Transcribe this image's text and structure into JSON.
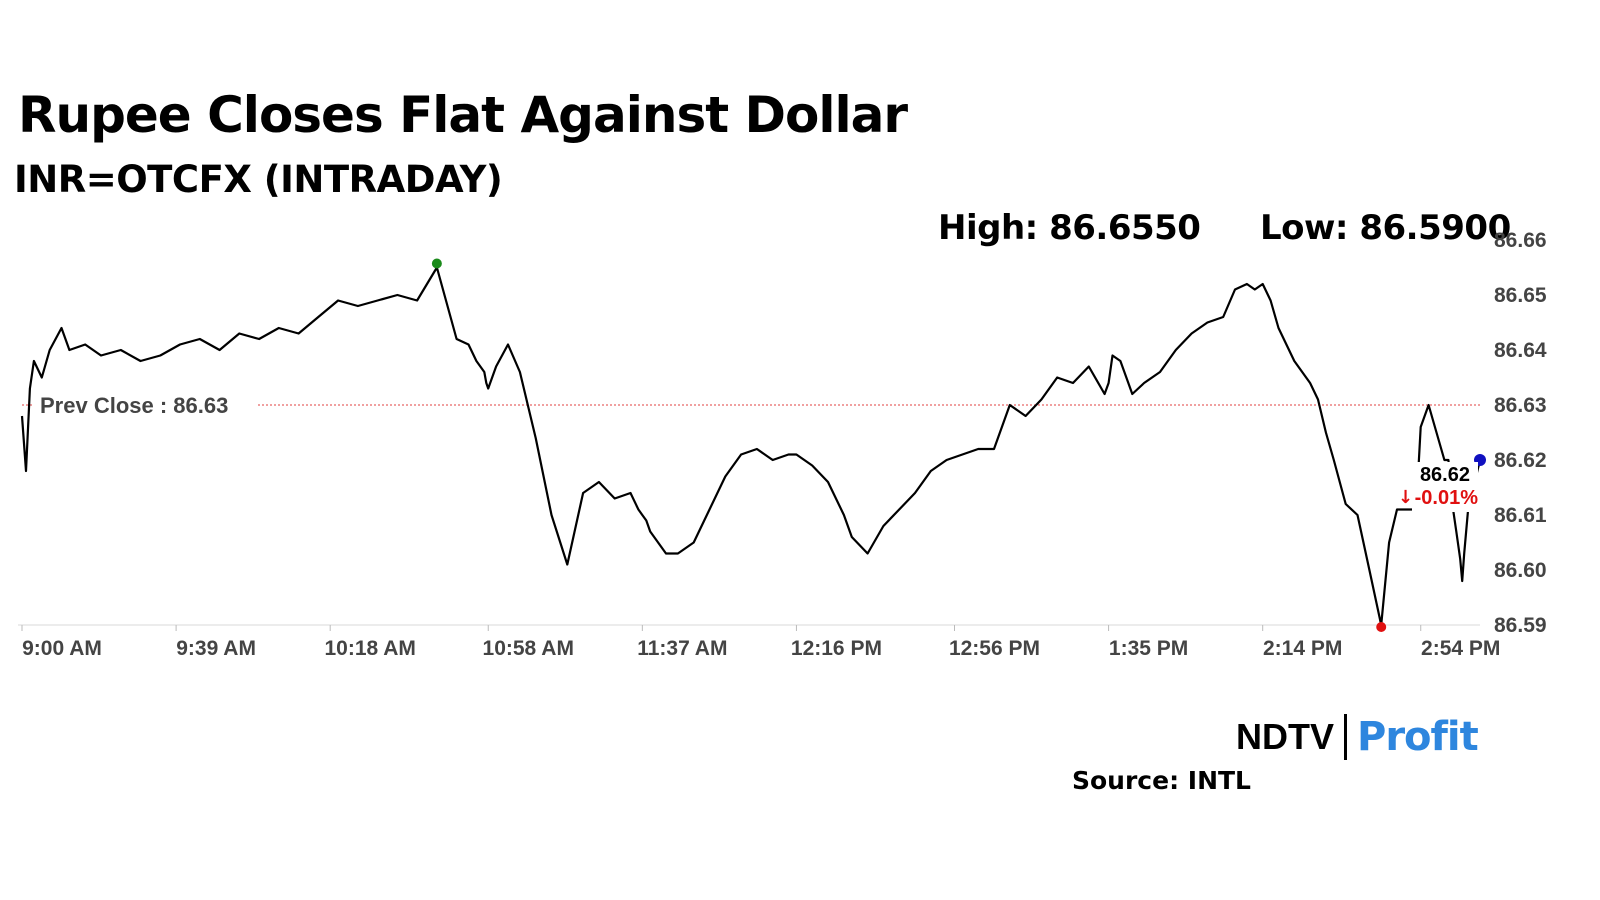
{
  "title": "Rupee Closes Flat Against Dollar",
  "subtitle": "INR=OTCFX (INTRADAY)",
  "stats": {
    "high": "High: 86.6550",
    "low": "Low: 86.5900"
  },
  "source": "Source: INTL",
  "logo": {
    "part1": "NDTV",
    "part2": "Profit"
  },
  "colors": {
    "line": "#000000",
    "prev_close": "#e04040",
    "high_dot": "#1a8a1a",
    "low_dot": "#e01010",
    "last_dot": "#1010c0",
    "change_negative": "#e01010",
    "grid": "#d9d9d9",
    "axis_text": "#444444"
  },
  "chart_data": {
    "type": "line",
    "title": "Rupee Closes Flat Against Dollar",
    "subtitle": "INR=OTCFX (INTRADAY)",
    "xlabel": "",
    "ylabel": "",
    "ylim": [
      86.59,
      86.66
    ],
    "y_ticks": [
      "86.66",
      "86.65",
      "86.64",
      "86.63",
      "86.62",
      "86.61",
      "86.60",
      "86.59"
    ],
    "x_ticks": [
      "9:00 AM",
      "9:39 AM",
      "10:18 AM",
      "10:58 AM",
      "11:37 AM",
      "12:16 PM",
      "12:56 PM",
      "1:35 PM",
      "2:14 PM",
      "2:54 PM"
    ],
    "x_tick_minutes": [
      540,
      579,
      618,
      658,
      697,
      736,
      776,
      815,
      854,
      894
    ],
    "prev_close": {
      "label": "Prev Close : 86.63",
      "value": 86.63
    },
    "high_value": 86.655,
    "low_value": 86.59,
    "last": {
      "value_label": "86.62",
      "change_label": "-0.01%",
      "value": 86.62
    },
    "grid": false,
    "series": [
      {
        "x": [
          540,
          541,
          542,
          543,
          545,
          547,
          550,
          552,
          556,
          560,
          565,
          570,
          575,
          580,
          585,
          590,
          595,
          600,
          605,
          610,
          615,
          620,
          625,
          630,
          635,
          640,
          645,
          650,
          653,
          655,
          657,
          657.5,
          658,
          660,
          663,
          666,
          670,
          674,
          678,
          682,
          686,
          690,
          694,
          696,
          697,
          698,
          699,
          701,
          703,
          706,
          710,
          714,
          718,
          722,
          726,
          730,
          734,
          736,
          740,
          744,
          748,
          750,
          754,
          758,
          762,
          766,
          770,
          774,
          778,
          782,
          786,
          790,
          794,
          798,
          802,
          806,
          810,
          814,
          815,
          816,
          818,
          821,
          824,
          828,
          832,
          836,
          840,
          844,
          847,
          850,
          852,
          854,
          856,
          858,
          862,
          866,
          868,
          870,
          872,
          875,
          878,
          881,
          884,
          886,
          888,
          890,
          892,
          893,
          894,
          896,
          898,
          900,
          901,
          902,
          903,
          904,
          904.5,
          905,
          906,
          909
        ],
        "y": [
          86.628,
          86.618,
          86.633,
          86.638,
          86.635,
          86.64,
          86.644,
          86.64,
          86.641,
          86.639,
          86.64,
          86.638,
          86.639,
          86.641,
          86.642,
          86.64,
          86.643,
          86.642,
          86.644,
          86.643,
          86.646,
          86.649,
          86.648,
          86.649,
          86.65,
          86.649,
          86.655,
          86.642,
          86.641,
          86.638,
          86.636,
          86.634,
          86.633,
          86.637,
          86.641,
          86.636,
          86.624,
          86.61,
          86.601,
          86.614,
          86.616,
          86.613,
          86.614,
          86.611,
          86.61,
          86.609,
          86.607,
          86.605,
          86.603,
          86.603,
          86.605,
          86.611,
          86.617,
          86.621,
          86.622,
          86.62,
          86.621,
          86.621,
          86.619,
          86.616,
          86.61,
          86.606,
          86.603,
          86.608,
          86.611,
          86.614,
          86.618,
          86.62,
          86.621,
          86.622,
          86.622,
          86.63,
          86.628,
          86.631,
          86.635,
          86.634,
          86.637,
          86.632,
          86.634,
          86.639,
          86.638,
          86.632,
          86.634,
          86.636,
          86.64,
          86.643,
          86.645,
          86.646,
          86.651,
          86.652,
          86.651,
          86.652,
          86.649,
          86.644,
          86.638,
          86.634,
          86.631,
          86.625,
          86.62,
          86.612,
          86.61,
          86.6,
          86.59,
          86.605,
          86.611,
          86.611,
          86.611,
          86.613,
          86.626,
          86.63,
          86.625,
          86.62,
          86.62,
          86.612,
          86.607,
          86.602,
          86.598,
          86.603,
          86.611,
          86.62
        ]
      }
    ]
  }
}
